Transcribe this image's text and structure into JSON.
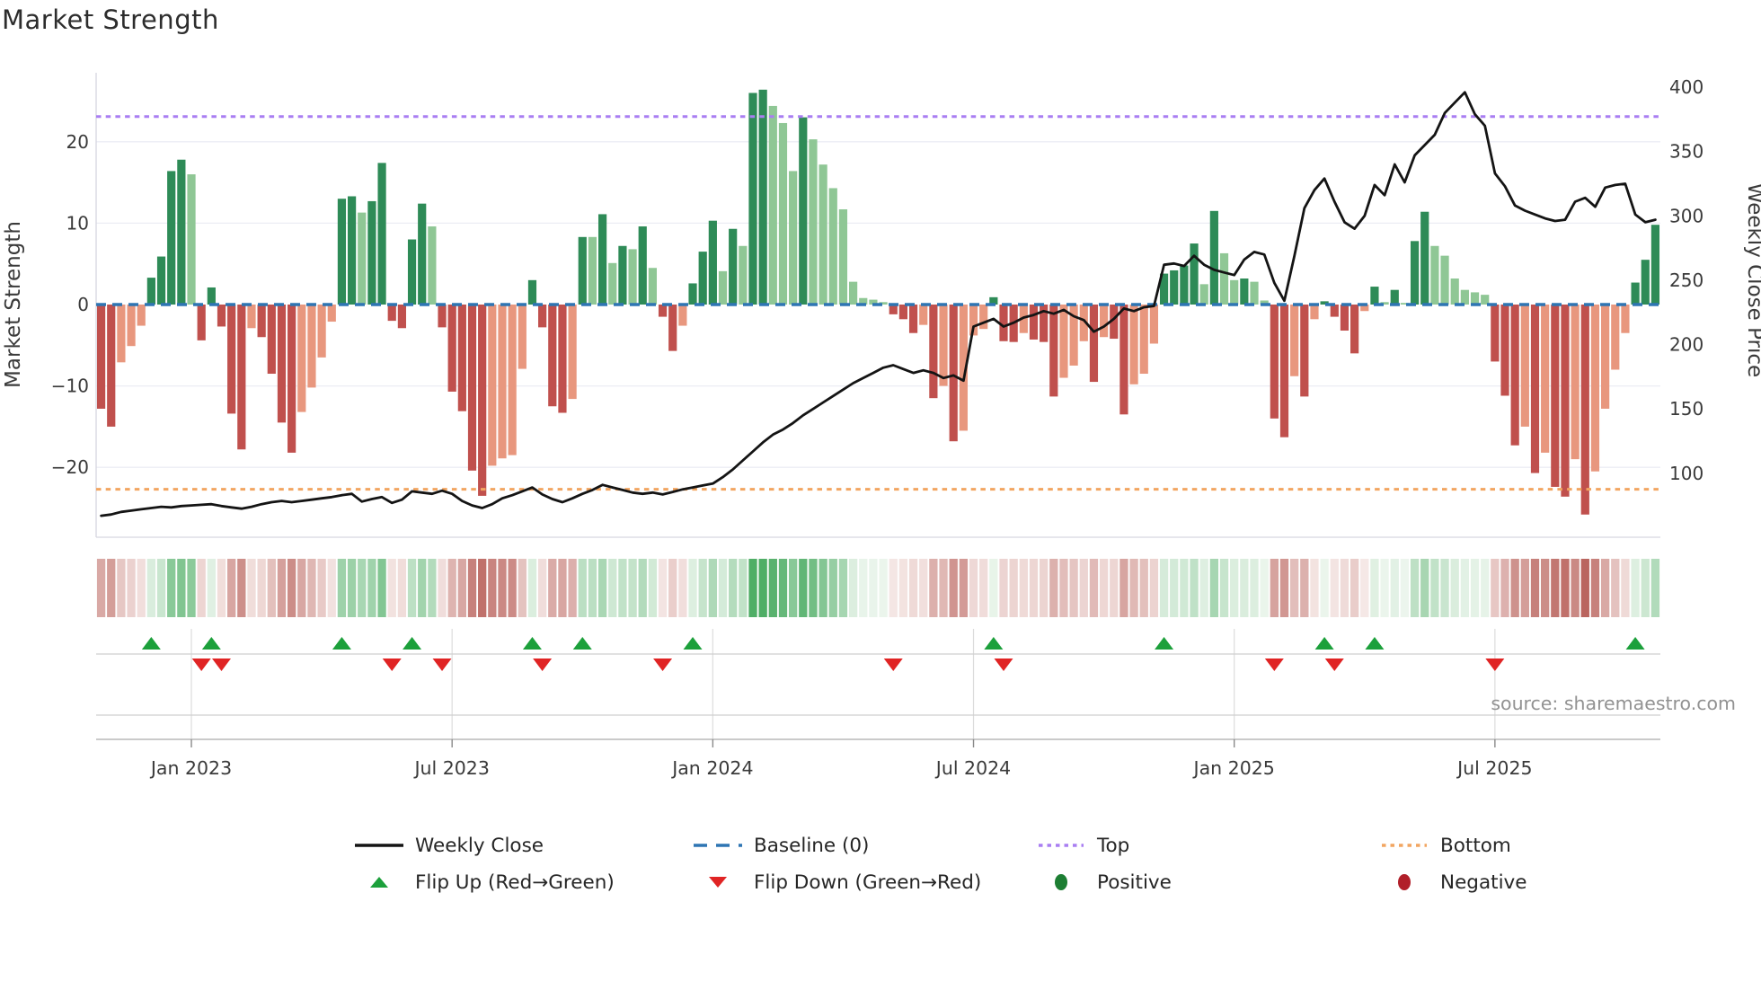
{
  "title": "Market Strength",
  "source_note": "source: sharemaestro.com",
  "axes": {
    "left_title": "Market Strength",
    "right_title": "Weekly Close Price",
    "left_ticks": [
      20,
      10,
      0,
      -10,
      -20
    ],
    "right_ticks": [
      400,
      350,
      300,
      250,
      200,
      150,
      100
    ]
  },
  "legend": {
    "weekly_close": "Weekly Close",
    "baseline": "Baseline (0)",
    "top": "Top",
    "bottom": "Bottom",
    "flip_up": "Flip Up (Red→Green)",
    "flip_down": "Flip Down (Green→Red)",
    "positive": "Positive",
    "negative": "Negative"
  },
  "colors": {
    "bar_dark_green": "#2e8b57",
    "bar_light_green": "#8fc795",
    "bar_dark_red": "#c0504d",
    "bar_light_red": "#e8977e",
    "baseline_blue": "#2e75b3",
    "top_purple": "#a97ef2",
    "bottom_orange": "#f2a561",
    "price_black": "#141414",
    "flip_up_green": "#1ca03b",
    "flip_down_red": "#e02424",
    "positive_dot": "#1d7e33",
    "negative_dot": "#b11f29",
    "grid": "#ecedf4",
    "spine": "#d6d6e0",
    "panel_line": "#cfcfcf",
    "axis_line": "#b8b8b8",
    "tick_text": "#3a3a3a",
    "source_text": "#929292"
  },
  "chart_data": {
    "type": "bar",
    "subtype": "weekly strength oscillator bars + weekly close price line + flip heatmap",
    "title": "Market Strength",
    "xlabel": "",
    "ylabel_left": "Market Strength",
    "ylabel_right": "Weekly Close Price",
    "left_ylim": [
      -30,
      28.5
    ],
    "right_ylim": [
      55,
      410
    ],
    "baseline": 0,
    "top_level": 23.1,
    "bottom_level": -22.7,
    "x_tick_weeks": [
      9,
      35,
      61,
      87,
      113,
      139
    ],
    "x_tick_labels": [
      "Jan 2023",
      "Jul 2023",
      "Jan 2024",
      "Jul 2024",
      "Jan 2025",
      "Jul 2025"
    ],
    "strength_bars": [
      -12.8,
      -15.0,
      -7.1,
      -5.1,
      -2.6,
      3.3,
      5.9,
      16.4,
      17.8,
      16.0,
      -4.4,
      2.1,
      -2.7,
      -13.4,
      -17.8,
      -2.9,
      -4.0,
      -8.5,
      -14.5,
      -18.2,
      -13.2,
      -10.2,
      -6.5,
      -2.1,
      13.0,
      13.3,
      11.3,
      12.7,
      17.4,
      -2.0,
      -2.9,
      8.0,
      12.4,
      9.6,
      -2.8,
      -10.7,
      -13.1,
      -20.4,
      -23.5,
      -19.8,
      -18.9,
      -18.5,
      -7.9,
      3.0,
      -2.8,
      -12.5,
      -13.3,
      -11.6,
      8.3,
      8.3,
      11.1,
      5.1,
      7.2,
      6.8,
      9.6,
      4.5,
      -1.5,
      -5.7,
      -2.6,
      2.6,
      6.5,
      10.3,
      4.1,
      9.3,
      7.2,
      26.0,
      26.4,
      24.4,
      22.3,
      16.4,
      23.0,
      20.3,
      17.2,
      14.3,
      11.7,
      2.8,
      0.8,
      0.6,
      0.3,
      -1.2,
      -1.8,
      -3.5,
      -2.5,
      -11.5,
      -10.0,
      -16.8,
      -15.5,
      -3.8,
      -3.0,
      0.9,
      -4.5,
      -4.6,
      -3.5,
      -4.3,
      -4.6,
      -11.3,
      -9.0,
      -7.5,
      -4.5,
      -9.5,
      -4.0,
      -4.2,
      -13.5,
      -9.8,
      -8.5,
      -4.8,
      3.8,
      4.2,
      4.8,
      7.5,
      2.5,
      11.5,
      6.3,
      3.0,
      3.2,
      2.8,
      0.5,
      -14.0,
      -16.3,
      -8.8,
      -11.3,
      -1.8,
      0.4,
      -1.5,
      -3.2,
      -6.0,
      -0.8,
      2.2,
      0.3,
      1.8,
      0.2,
      7.8,
      11.4,
      7.2,
      6.0,
      3.2,
      1.8,
      1.5,
      1.2,
      -7.0,
      -11.2,
      -17.3,
      -15.0,
      -20.7,
      -18.2,
      -22.4,
      -23.6,
      -19.0,
      -25.8,
      -20.5,
      -12.8,
      -8.0,
      -3.5,
      2.7,
      5.5,
      9.8
    ],
    "weekly_close": [
      67,
      68,
      70,
      71,
      72,
      73,
      74,
      73.5,
      74.5,
      75,
      75.5,
      76,
      74.5,
      73.5,
      72.5,
      74,
      76,
      77.5,
      78.5,
      77.5,
      78.5,
      79.5,
      80.5,
      81.5,
      83,
      84,
      78,
      80,
      81.5,
      77,
      79.5,
      86,
      85,
      84,
      86.5,
      84,
      78.5,
      75,
      73,
      76,
      80.5,
      83,
      86,
      89,
      83.5,
      80,
      77.5,
      80.5,
      84,
      87,
      91,
      89,
      87,
      85,
      84,
      85,
      83.5,
      85.5,
      87.5,
      89,
      90.5,
      92,
      97,
      103,
      110,
      117,
      124,
      130,
      134,
      139,
      145,
      150,
      155,
      160,
      165,
      170,
      174,
      178,
      182,
      184,
      181,
      178,
      180,
      178,
      174,
      176,
      172,
      214,
      217,
      220,
      214,
      217,
      221,
      223,
      226,
      224,
      227,
      222,
      219,
      210,
      214,
      220,
      228,
      226,
      229,
      230,
      262,
      263,
      261,
      269,
      262,
      258,
      256,
      254,
      266,
      272,
      270,
      248,
      234,
      269,
      306,
      320,
      329,
      311,
      295,
      290,
      300,
      324,
      316,
      340,
      326,
      347,
      355,
      363,
      380,
      388,
      396,
      379,
      370,
      333,
      323,
      308,
      304,
      301,
      298,
      296,
      297,
      311,
      314,
      307,
      322,
      324,
      325,
      301,
      295,
      297
    ],
    "flip_up_weeks": [
      5,
      11,
      24,
      31,
      43,
      48,
      59,
      89,
      106,
      122,
      127,
      153
    ],
    "flip_down_weeks": [
      10,
      12,
      29,
      34,
      44,
      56,
      79,
      90,
      117,
      123,
      139
    ],
    "legend_position": "bottom",
    "grid": "horizontal-light"
  }
}
